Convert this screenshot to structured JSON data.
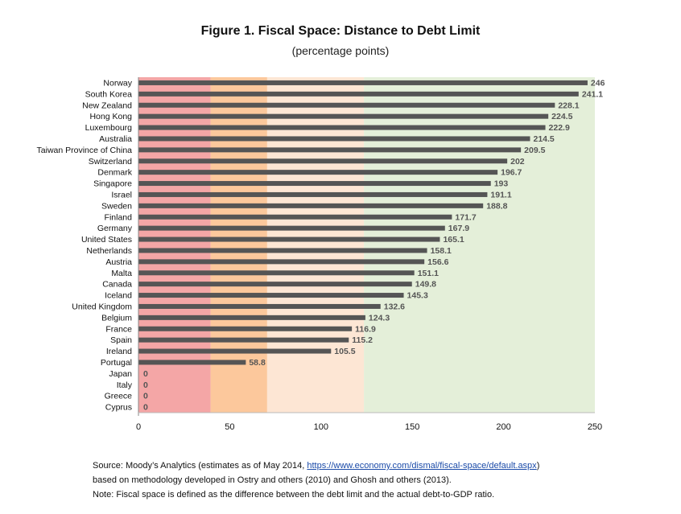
{
  "chart_data": {
    "type": "bar",
    "orientation": "horizontal",
    "title": "Figure 1. Fiscal Space: Distance to Debt Limit",
    "subtitle": "(percentage points)",
    "categories": [
      "Norway",
      "South Korea",
      "New Zealand",
      "Hong Kong",
      "Luxembourg",
      "Australia",
      "Taiwan Province of China",
      "Switzerland",
      "Denmark",
      "Singapore",
      "Israel",
      "Sweden",
      "Finland",
      "Germany",
      "United States",
      "Netherlands",
      "Austria",
      "Malta",
      "Canada",
      "Iceland",
      "United Kingdom",
      "Belgium",
      "France",
      "Spain",
      "Ireland",
      "Portugal",
      "Japan",
      "Italy",
      "Greece",
      "Cyprus"
    ],
    "values": [
      246,
      241.1,
      228.1,
      224.5,
      222.9,
      214.5,
      209.5,
      202,
      196.7,
      193,
      191.1,
      188.8,
      171.7,
      167.9,
      165.1,
      158.1,
      156.6,
      151.1,
      149.8,
      145.3,
      132.6,
      124.3,
      116.9,
      115.2,
      105.5,
      58.8,
      0,
      0,
      0,
      0
    ],
    "value_labels": [
      "246",
      "241.1",
      "228.1",
      "224.5",
      "222.9",
      "214.5",
      "209.5",
      "202",
      "196.7",
      "193",
      "191.1",
      "188.8",
      "171.7",
      "167.9",
      "165.1",
      "158.1",
      "156.6",
      "151.1",
      "149.8",
      "145.3",
      "132.6",
      "124.3",
      "116.9",
      "115.2",
      "105.5",
      "58.8",
      "0",
      "0",
      "0",
      "0"
    ],
    "xlim": [
      0,
      250
    ],
    "xticks": [
      "0",
      "50",
      "100",
      "150",
      "200",
      "250"
    ],
    "xtick_values": [
      0,
      50,
      100,
      150,
      200,
      250
    ],
    "bands": [
      {
        "from": 0,
        "to": 39.5,
        "color": "#f4a6a6"
      },
      {
        "from": 39.5,
        "to": 70.5,
        "color": "#fcc89c"
      },
      {
        "from": 70.5,
        "to": 123.5,
        "color": "#fde6d4"
      },
      {
        "from": 123.5,
        "to": 250,
        "color": "#e4efd9"
      }
    ],
    "bar_color": "#555555",
    "grid": false
  },
  "footnotes": {
    "source_prefix": "Source: Moody’s Analytics (estimates as of May 2014, ",
    "source_link": "https://www.economy.com/dismal/fiscal-space/default.aspx",
    "source_suffix": ")",
    "line2": "based on methodology developed in Ostry and others (2010) and Ghosh and others (2013).",
    "line3": "Note: Fiscal space is defined as the difference between the debt limit and the actual debt-to-GDP ratio."
  }
}
